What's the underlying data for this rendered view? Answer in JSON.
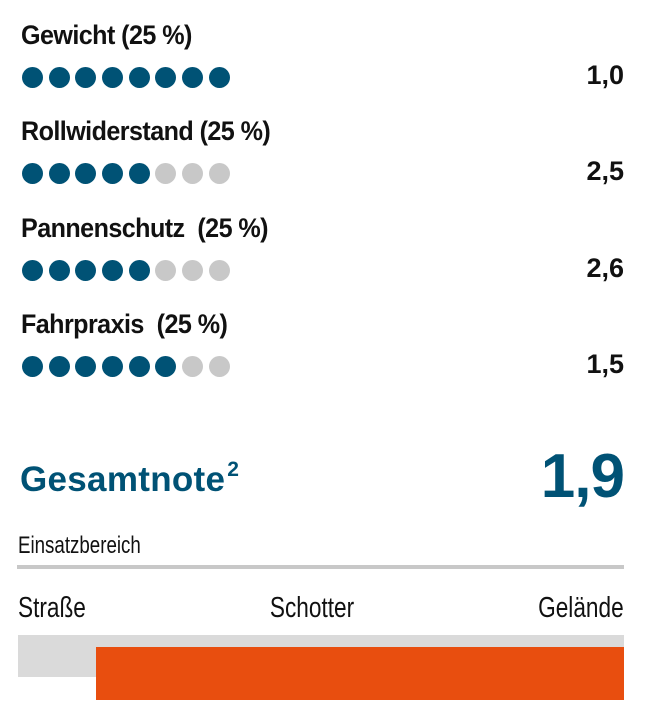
{
  "criteria": [
    {
      "label": "Gewicht (25 %)",
      "filled": 8,
      "total": 8,
      "value": "1,0"
    },
    {
      "label": "Rollwiderstand (25 %)",
      "filled": 5,
      "total": 8,
      "value": "2,5"
    },
    {
      "label": "Pannenschutz  (25 %)",
      "filled": 5,
      "total": 8,
      "value": "2,6"
    },
    {
      "label": "Fahrpraxis  (25 %)",
      "filled": 6,
      "total": 8,
      "value": "1,5"
    }
  ],
  "total": {
    "label": "Gesamtnote",
    "footnote": "2",
    "value": "1,9"
  },
  "usage": {
    "title": "Einsatzbereich",
    "scale_labels": [
      "Straße",
      "Schotter",
      "Gelände"
    ],
    "range_start_fraction": 0.129,
    "range_end_fraction": 1.0
  },
  "colors": {
    "accent": "#005275",
    "dot_empty": "#c8c8c8",
    "bar_fill": "#e84e0f",
    "bar_track": "#dadada",
    "divider": "#c8c8c8",
    "text": "#111111"
  }
}
